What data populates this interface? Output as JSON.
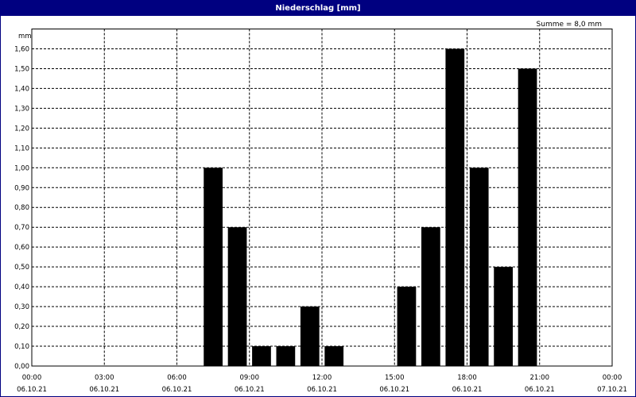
{
  "window": {
    "title": "Niederschlag [mm]"
  },
  "summary": "Summe = 8,0 mm",
  "colors": {
    "titlebar": "#000080",
    "bar": "#000000",
    "grid": "#000000"
  },
  "chart_data": {
    "type": "bar",
    "title": "Niederschlag [mm]",
    "ylabel": "mm",
    "xlabel": "",
    "ylim": [
      0,
      1.7
    ],
    "yticks": [
      "0,00",
      "0,10",
      "0,20",
      "0,30",
      "0,40",
      "0,50",
      "0,60",
      "0,70",
      "0,80",
      "0,90",
      "1,00",
      "1,10",
      "1,20",
      "1,30",
      "1,40",
      "1,50",
      "1,60"
    ],
    "xlim_hours": [
      0,
      24
    ],
    "xticks": [
      {
        "time": "00:00",
        "date": "06.10.21"
      },
      {
        "time": "03:00",
        "date": "06.10.21"
      },
      {
        "time": "06:00",
        "date": "06.10.21"
      },
      {
        "time": "09:00",
        "date": "06.10.21"
      },
      {
        "time": "12:00",
        "date": "06.10.21"
      },
      {
        "time": "15:00",
        "date": "06.10.21"
      },
      {
        "time": "18:00",
        "date": "06.10.21"
      },
      {
        "time": "21:00",
        "date": "06.10.21"
      },
      {
        "time": "00:00",
        "date": "07.10.21"
      }
    ],
    "grid": true,
    "bar_interval_hours": 1,
    "x_hours": [
      8,
      9,
      10,
      11,
      12,
      13,
      16,
      17,
      18,
      19,
      20,
      21
    ],
    "values": [
      1.0,
      0.7,
      0.1,
      0.1,
      0.3,
      0.1,
      0.4,
      0.7,
      1.6,
      1.0,
      0.5,
      1.5
    ]
  }
}
